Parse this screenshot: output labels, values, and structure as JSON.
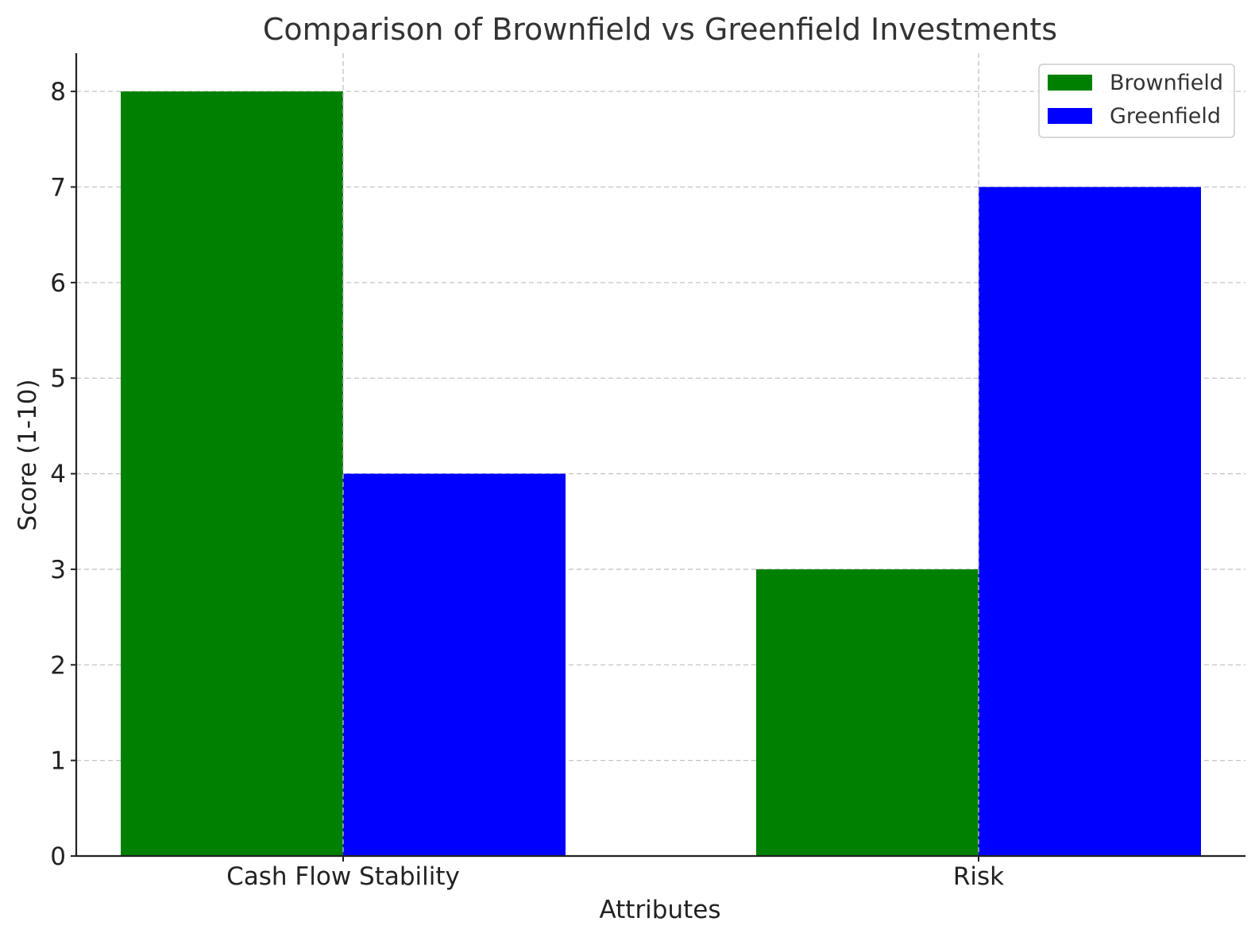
{
  "chart_data": {
    "type": "bar",
    "title": "Comparison of Brownfield vs Greenfield Investments",
    "xlabel": "Attributes",
    "ylabel": "Score (1-10)",
    "categories": [
      "Cash Flow Stability",
      "Risk"
    ],
    "series": [
      {
        "name": "Brownfield",
        "values": [
          8,
          3
        ],
        "color": "#008000"
      },
      {
        "name": "Greenfield",
        "values": [
          4,
          7
        ],
        "color": "#0000ff"
      }
    ],
    "ylim": [
      0,
      8.4
    ],
    "yticks": [
      0,
      1,
      2,
      3,
      4,
      5,
      6,
      7,
      8
    ],
    "grid": true,
    "legend_position": "top-right"
  }
}
